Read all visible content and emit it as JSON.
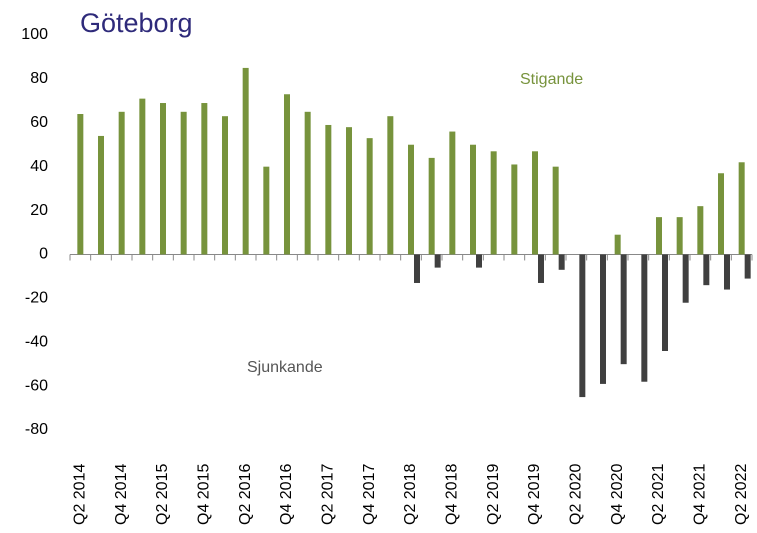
{
  "chart_data": {
    "type": "bar",
    "title": "Göteborg",
    "categories": [
      "Q2 2014",
      null,
      "Q4 2014",
      null,
      "Q2 2015",
      null,
      "Q4 2015",
      null,
      "Q2 2016",
      null,
      "Q4 2016",
      null,
      "Q2 2017",
      null,
      "Q4 2017",
      null,
      "Q2 2018",
      null,
      "Q4 2018",
      null,
      "Q2 2019",
      null,
      "Q4 2019",
      null,
      "Q2 2020",
      null,
      "Q4 2020",
      null,
      "Q2 2021",
      null,
      "Q4 2021",
      null,
      "Q2 2022"
    ],
    "series": [
      {
        "name": "Stigande",
        "color": "#77933c",
        "values": [
          64,
          54,
          65,
          71,
          69,
          65,
          69,
          63,
          85,
          40,
          73,
          65,
          59,
          58,
          53,
          63,
          50,
          44,
          56,
          50,
          47,
          41,
          47,
          40,
          null,
          null,
          9,
          null,
          17,
          17,
          22,
          37,
          42
        ]
      },
      {
        "name": "Sjunkande",
        "color": "#404040",
        "values": [
          null,
          null,
          null,
          null,
          null,
          null,
          null,
          null,
          null,
          null,
          null,
          null,
          null,
          null,
          null,
          null,
          -13,
          -6,
          null,
          -6,
          null,
          null,
          -13,
          -7,
          -65,
          -59,
          -50,
          -58,
          -44,
          -22,
          -14,
          -16,
          -11
        ]
      }
    ],
    "ylim": [
      -80,
      100
    ],
    "yticks": [
      -80,
      -60,
      -40,
      -20,
      0,
      20,
      40,
      60,
      80,
      100
    ],
    "grid": false
  }
}
